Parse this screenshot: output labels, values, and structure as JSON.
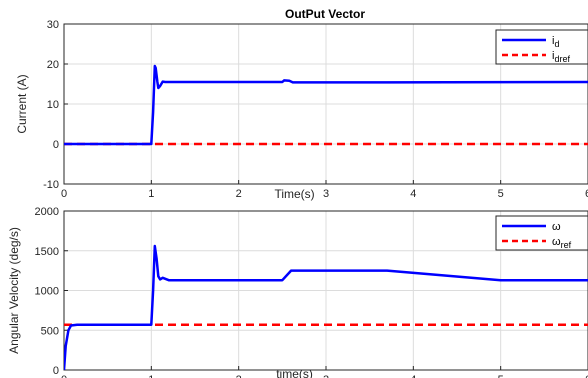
{
  "chart_data": [
    {
      "type": "line",
      "title": "OutPut Vector",
      "xlabel": "Time(s)",
      "ylabel": "Current (A)",
      "xlim": [
        0,
        6
      ],
      "ylim": [
        -10,
        30
      ],
      "xticks": [
        "0",
        "1",
        "2",
        "3",
        "4",
        "5",
        "6"
      ],
      "yticks": [
        "-10",
        "0",
        "10",
        "20",
        "30"
      ],
      "grid": true,
      "legend_position": "top-right",
      "series": [
        {
          "name": "i_d",
          "legend_main": "i",
          "legend_sub": "d",
          "color": "#0000ff",
          "style": "solid",
          "x": [
            0,
            1.0,
            1.02,
            1.04,
            1.05,
            1.07,
            1.08,
            1.1,
            1.13,
            1.16,
            1.2,
            2.5,
            2.52,
            2.58,
            2.62,
            3.7,
            6
          ],
          "y": [
            0,
            0,
            8,
            19.5,
            19.0,
            15.5,
            14.0,
            14.5,
            15.6,
            15.5,
            15.5,
            15.5,
            15.9,
            15.8,
            15.4,
            15.4,
            15.5
          ]
        },
        {
          "name": "i_dref",
          "legend_main": "i",
          "legend_sub": "dref",
          "color": "#ff0000",
          "style": "dashed",
          "x": [
            0,
            6
          ],
          "y": [
            0,
            0
          ]
        }
      ]
    },
    {
      "type": "line",
      "title": "",
      "xlabel": "time(s)",
      "ylabel": "Angular Velocity (deg/s)",
      "xlim": [
        0,
        6
      ],
      "ylim": [
        0,
        2000
      ],
      "xticks": [
        "0",
        "1",
        "2",
        "3",
        "4",
        "5",
        "6"
      ],
      "yticks": [
        "0",
        "500",
        "1000",
        "1500",
        "2000"
      ],
      "grid": true,
      "legend_position": "top-right",
      "series": [
        {
          "name": "ω",
          "legend_main": "ω",
          "legend_sub": "",
          "color": "#0000ff",
          "style": "solid",
          "x": [
            0,
            0.02,
            0.05,
            0.08,
            0.15,
            1.0,
            1.02,
            1.04,
            1.06,
            1.08,
            1.1,
            1.13,
            1.2,
            2.5,
            2.6,
            3.7,
            5.0,
            6
          ],
          "y": [
            0,
            300,
            500,
            560,
            570,
            570,
            1000,
            1560,
            1400,
            1180,
            1140,
            1160,
            1130,
            1130,
            1250,
            1250,
            1130,
            1130
          ]
        },
        {
          "name": "ω_ref",
          "legend_main": "ω",
          "legend_sub": "ref",
          "color": "#ff0000",
          "style": "dashed",
          "x": [
            0,
            6
          ],
          "y": [
            570,
            570
          ]
        }
      ]
    }
  ]
}
